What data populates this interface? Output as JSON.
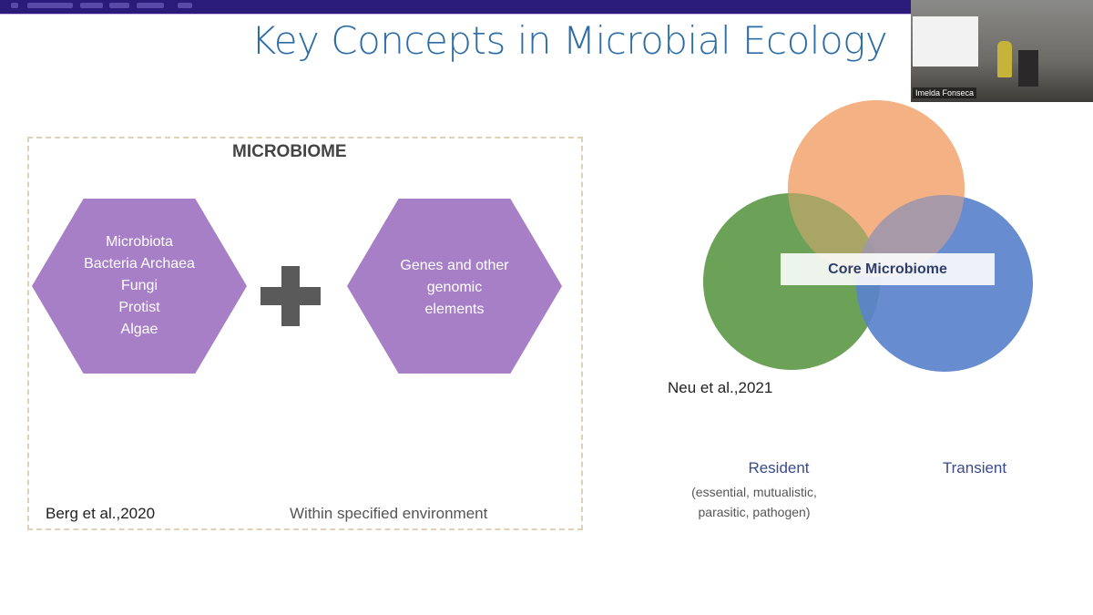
{
  "slide": {
    "title": "Key Concepts in Microbial Ecology",
    "microbiome_panel": {
      "heading": "MICROBIOME",
      "left_hexagon": [
        "Microbiota",
        "Bacteria Archaea",
        "Fungi",
        "Protist",
        "Algae"
      ],
      "right_hexagon": [
        "Genes and other",
        "genomic",
        "elements"
      ],
      "operator": "plus-icon",
      "citation": "Berg et al.,2020",
      "note": "Within specified environment"
    },
    "venn": {
      "center_label": "Core Microbiome",
      "citation": "Neu et al.,2021",
      "resident_label": "Resident",
      "resident_detail": [
        "(essential, mutualistic,",
        "parasitic, pathogen)"
      ],
      "transient_label": "Transient",
      "colors": {
        "top": "#f4b183",
        "left": "#5f9a4a",
        "right": "#5b82cc"
      }
    }
  },
  "webcam": {
    "name": "Imelda Fonseca"
  },
  "colors": {
    "title": "#2e6da4",
    "hexagon": "#a67fc6",
    "topbar": "#2a1a7a"
  }
}
